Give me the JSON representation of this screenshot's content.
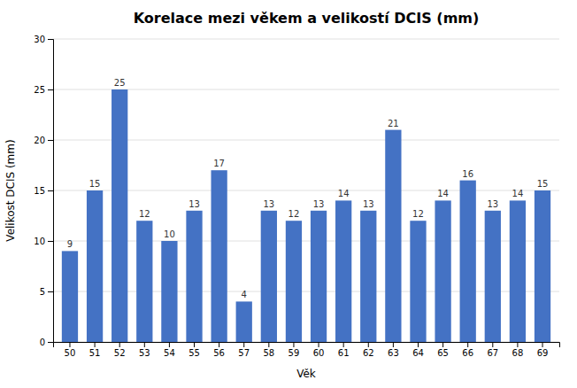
{
  "chart_data": {
    "type": "bar",
    "title": "Korelace mezi věkem a velikostí DCIS (mm)",
    "xlabel": "Věk",
    "ylabel": "Velikost DCIS (mm)",
    "categories": [
      50,
      51,
      52,
      53,
      54,
      55,
      56,
      57,
      58,
      59,
      60,
      61,
      62,
      63,
      64,
      65,
      66,
      67,
      68,
      69
    ],
    "values": [
      9,
      15,
      25,
      12,
      10,
      13,
      17,
      4,
      13,
      12,
      13,
      14,
      13,
      21,
      12,
      14,
      16,
      13,
      14,
      15
    ],
    "color": "#4472C4",
    "ylim": [
      0,
      30
    ],
    "yticks": [
      0,
      5,
      10,
      15,
      20,
      25,
      30
    ],
    "grid": true,
    "data_labels": true
  }
}
